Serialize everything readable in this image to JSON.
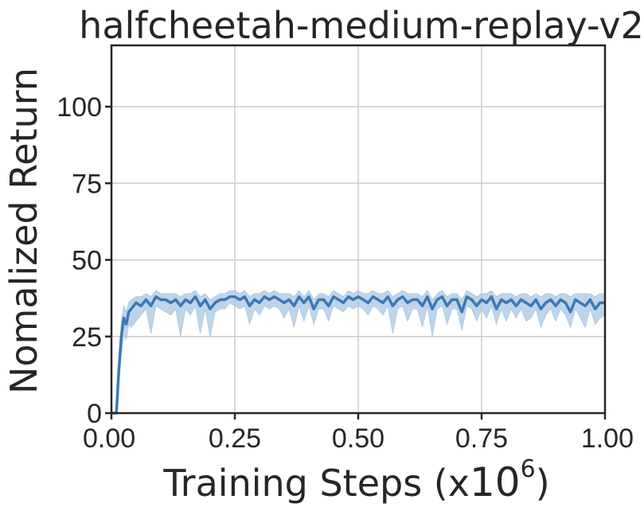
{
  "chart_data": {
    "type": "line",
    "title": "halfcheetah-medium-replay-v2",
    "xlabel": "Training Steps (x",
    "xlabel_exponent_base": "10",
    "xlabel_exponent": "6",
    "xlabel_suffix": ")",
    "ylabel": "Nomalized Return",
    "xlim": [
      0,
      1.0
    ],
    "ylim": [
      0,
      120
    ],
    "xticks": [
      0.0,
      0.25,
      0.5,
      0.75,
      1.0
    ],
    "xtick_labels": [
      "0.00",
      "0.25",
      "0.50",
      "0.75",
      "1.00"
    ],
    "yticks": [
      0,
      25,
      50,
      75,
      100
    ],
    "ytick_labels": [
      "0",
      "25",
      "50",
      "75",
      "100"
    ],
    "grid": true,
    "colors": {
      "line": "#3a7ab5",
      "band": "#a9c6e0",
      "grid": "#cccccc",
      "axis": "#262626"
    },
    "series": [
      {
        "x": [
          0.0,
          0.005,
          0.01,
          0.015,
          0.02,
          0.025,
          0.03,
          0.035,
          0.04,
          0.05,
          0.06,
          0.07,
          0.08,
          0.09,
          0.1,
          0.11,
          0.12,
          0.13,
          0.14,
          0.15,
          0.16,
          0.17,
          0.18,
          0.19,
          0.2,
          0.21,
          0.22,
          0.23,
          0.24,
          0.25,
          0.26,
          0.27,
          0.28,
          0.29,
          0.3,
          0.31,
          0.32,
          0.33,
          0.34,
          0.35,
          0.36,
          0.37,
          0.38,
          0.39,
          0.4,
          0.41,
          0.42,
          0.43,
          0.44,
          0.45,
          0.46,
          0.47,
          0.48,
          0.49,
          0.5,
          0.51,
          0.52,
          0.53,
          0.54,
          0.55,
          0.56,
          0.57,
          0.58,
          0.59,
          0.6,
          0.61,
          0.62,
          0.63,
          0.64,
          0.65,
          0.66,
          0.67,
          0.68,
          0.69,
          0.7,
          0.71,
          0.72,
          0.73,
          0.74,
          0.75,
          0.76,
          0.77,
          0.78,
          0.79,
          0.8,
          0.81,
          0.82,
          0.83,
          0.84,
          0.85,
          0.86,
          0.87,
          0.88,
          0.89,
          0.9,
          0.91,
          0.92,
          0.93,
          0.94,
          0.95,
          0.96,
          0.97,
          0.98,
          0.99,
          1.0
        ],
        "mean": [
          0,
          0,
          0,
          14,
          25,
          31,
          29,
          33,
          34,
          36,
          35,
          37,
          35,
          38,
          37,
          37,
          36,
          37,
          35,
          37,
          36,
          38,
          35,
          37,
          34,
          36,
          37,
          37,
          38,
          38,
          37,
          38,
          35,
          37,
          36,
          38,
          37,
          38,
          37,
          36,
          37,
          35,
          38,
          36,
          38,
          34,
          37,
          37,
          35,
          38,
          37,
          36,
          38,
          37,
          38,
          37,
          36,
          38,
          37,
          36,
          38,
          35,
          37,
          38,
          36,
          37,
          37,
          35,
          38,
          34,
          37,
          38,
          35,
          37,
          37,
          33,
          38,
          37,
          35,
          37,
          36,
          38,
          34,
          37,
          36,
          37,
          35,
          37,
          36,
          35,
          37,
          34,
          36,
          37,
          35,
          37,
          36,
          33,
          37,
          36,
          35,
          37,
          34,
          36,
          36
        ],
        "lower": [
          0,
          0,
          0,
          10,
          19,
          26,
          24,
          29,
          28,
          30,
          32,
          34,
          26,
          35,
          34,
          33,
          32,
          34,
          25,
          34,
          32,
          35,
          26,
          34,
          25,
          33,
          34,
          34,
          36,
          35,
          34,
          35,
          29,
          34,
          32,
          35,
          34,
          35,
          34,
          31,
          34,
          28,
          35,
          30,
          35,
          29,
          34,
          34,
          30,
          35,
          34,
          33,
          35,
          34,
          35,
          34,
          32,
          35,
          34,
          32,
          35,
          26,
          34,
          35,
          30,
          34,
          34,
          28,
          35,
          25,
          34,
          35,
          29,
          34,
          34,
          27,
          35,
          34,
          30,
          34,
          31,
          35,
          29,
          34,
          30,
          34,
          31,
          34,
          30,
          31,
          34,
          28,
          32,
          34,
          30,
          34,
          32,
          28,
          34,
          31,
          28,
          34,
          29,
          31,
          32
        ],
        "upper": [
          0,
          0,
          0,
          17,
          30,
          35,
          33,
          36,
          37,
          38,
          38,
          39,
          38,
          40,
          39,
          39,
          39,
          39,
          38,
          39,
          39,
          40,
          38,
          39,
          37,
          38,
          39,
          39,
          40,
          40,
          39,
          40,
          38,
          39,
          39,
          40,
          39,
          40,
          39,
          39,
          39,
          38,
          40,
          38,
          40,
          37,
          39,
          39,
          38,
          40,
          39,
          38,
          40,
          39,
          40,
          39,
          39,
          40,
          39,
          39,
          40,
          38,
          39,
          40,
          39,
          39,
          39,
          38,
          40,
          37,
          39,
          40,
          38,
          39,
          39,
          37,
          40,
          39,
          38,
          39,
          39,
          40,
          38,
          39,
          39,
          39,
          38,
          39,
          39,
          38,
          39,
          38,
          39,
          39,
          38,
          39,
          39,
          38,
          39,
          39,
          39,
          39,
          38,
          39,
          39
        ]
      }
    ]
  }
}
